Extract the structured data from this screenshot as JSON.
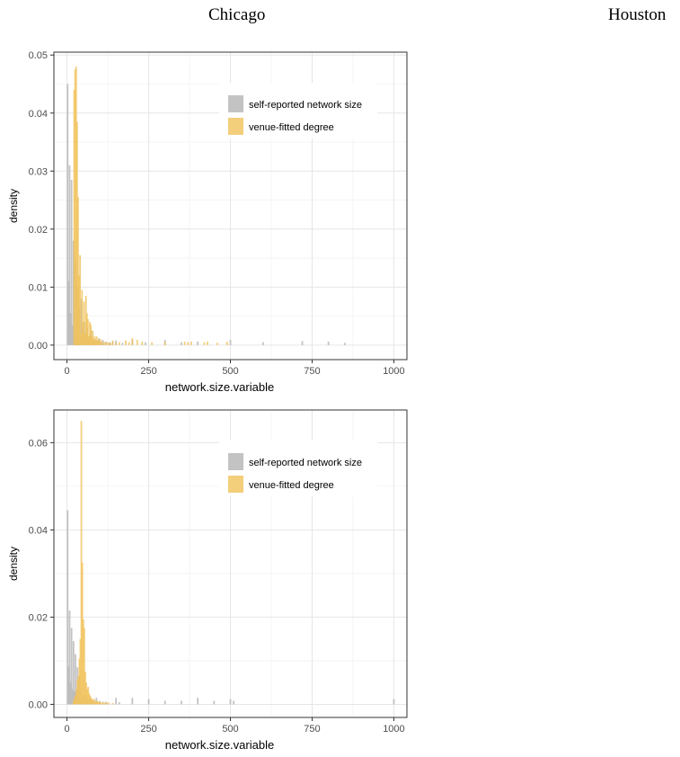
{
  "headers": {
    "left": "Chicago",
    "right": "Houston"
  },
  "colors": {
    "self": "#b9b9b9",
    "venue": "#f0c25a"
  },
  "chart_data": [
    {
      "type": "bar",
      "xlabel": "network.size.variable",
      "ylabel": "density",
      "xlim": [
        -40,
        1040
      ],
      "ylim": [
        -0.0025,
        0.0505
      ],
      "x_ticks": [
        0,
        250,
        500,
        750,
        1000
      ],
      "y_ticks": [
        0.0,
        0.01,
        0.02,
        0.03,
        0.04,
        0.05
      ],
      "y_tick_labels": [
        "0.00",
        "0.01",
        "0.02",
        "0.03",
        "0.04",
        "0.05"
      ],
      "grid": true,
      "legend": "top-right",
      "series": [
        {
          "name": "self-reported network size",
          "color_key": "self",
          "points": [
            [
              2,
              0.045
            ],
            [
              5,
              0.011
            ],
            [
              8,
              0.031
            ],
            [
              11,
              0.0055
            ],
            [
              14,
              0.0285
            ],
            [
              17,
              0.0035
            ],
            [
              20,
              0.018
            ],
            [
              23,
              0.0025
            ],
            [
              26,
              0.0145
            ],
            [
              29,
              0.002
            ],
            [
              32,
              0.01
            ],
            [
              35,
              0.0015
            ],
            [
              38,
              0.0065
            ],
            [
              41,
              0.0012
            ],
            [
              44,
              0.008
            ],
            [
              50,
              0.0025
            ],
            [
              53,
              0.004
            ],
            [
              59,
              0.002
            ],
            [
              62,
              0.003
            ],
            [
              68,
              0.0015
            ],
            [
              74,
              0.0025
            ],
            [
              80,
              0.001
            ],
            [
              86,
              0.001
            ],
            [
              92,
              0.0008
            ],
            [
              98,
              0.0012
            ],
            [
              104,
              0.0006
            ],
            [
              110,
              0.0009
            ],
            [
              120,
              0.0006
            ],
            [
              130,
              0.0005
            ],
            [
              140,
              0.0006
            ],
            [
              150,
              0.0008
            ],
            [
              170,
              0.0004
            ],
            [
              200,
              0.0009
            ],
            [
              240,
              0.0005
            ],
            [
              300,
              0.0009
            ],
            [
              350,
              0.0005
            ],
            [
              400,
              0.0006
            ],
            [
              500,
              0.0009
            ],
            [
              600,
              0.0005
            ],
            [
              720,
              0.0007
            ],
            [
              800,
              0.0006
            ],
            [
              850,
              0.0004
            ]
          ]
        },
        {
          "name": "venue-fitted degree",
          "color_key": "venue",
          "points": [
            [
              22,
              0.044
            ],
            [
              25,
              0.0475
            ],
            [
              28,
              0.048
            ],
            [
              31,
              0.0385
            ],
            [
              34,
              0.0255
            ],
            [
              37,
              0.012
            ],
            [
              40,
              0.0155
            ],
            [
              43,
              0.002
            ],
            [
              46,
              0.0095
            ],
            [
              49,
              0.004
            ],
            [
              52,
              0.0075
            ],
            [
              55,
              0.002
            ],
            [
              58,
              0.0085
            ],
            [
              61,
              0.0055
            ],
            [
              64,
              0.0045
            ],
            [
              67,
              0.0015
            ],
            [
              70,
              0.004
            ],
            [
              73,
              0.0035
            ],
            [
              76,
              0.0015
            ],
            [
              79,
              0.0025
            ],
            [
              82,
              0.001
            ],
            [
              85,
              0.0015
            ],
            [
              88,
              0.001
            ],
            [
              91,
              0.0015
            ],
            [
              94,
              0.0008
            ],
            [
              97,
              0.001
            ],
            [
              100,
              0.0006
            ],
            [
              103,
              0.001
            ],
            [
              109,
              0.0006
            ],
            [
              115,
              0.0005
            ],
            [
              121,
              0.0005
            ],
            [
              127,
              0.0004
            ],
            [
              133,
              0.0004
            ],
            [
              140,
              0.0008
            ],
            [
              150,
              0.0004
            ],
            [
              160,
              0.0005
            ],
            [
              180,
              0.0008
            ],
            [
              190,
              0.0005
            ],
            [
              200,
              0.0012
            ],
            [
              215,
              0.0009
            ],
            [
              230,
              0.0006
            ],
            [
              260,
              0.0005
            ],
            [
              300,
              0.0005
            ],
            [
              360,
              0.0006
            ],
            [
              370,
              0.0005
            ],
            [
              380,
              0.0006
            ],
            [
              420,
              0.0005
            ],
            [
              430,
              0.0006
            ],
            [
              460,
              0.0004
            ],
            [
              490,
              0.0006
            ]
          ]
        }
      ]
    },
    {
      "type": "bar",
      "xlabel": "network.size.variable",
      "ylabel": "density",
      "xlim": [
        -40,
        1040
      ],
      "ylim": [
        -0.003,
        0.0675
      ],
      "x_ticks": [
        0,
        250,
        500,
        750,
        1000
      ],
      "y_ticks": [
        0.0,
        0.02,
        0.04,
        0.06
      ],
      "y_tick_labels": [
        "0.00",
        "0.02",
        "0.04",
        "0.06"
      ],
      "grid": true,
      "legend": "top-right",
      "series": [
        {
          "name": "self-reported network size",
          "color_key": "self",
          "points": [
            [
              2,
              0.0445
            ],
            [
              5,
              0.0085
            ],
            [
              8,
              0.0215
            ],
            [
              11,
              0.005
            ],
            [
              14,
              0.0175
            ],
            [
              17,
              0.0035
            ],
            [
              20,
              0.0145
            ],
            [
              23,
              0.003
            ],
            [
              26,
              0.0115
            ],
            [
              29,
              0.0025
            ],
            [
              32,
              0.0085
            ],
            [
              35,
              0.0015
            ],
            [
              38,
              0.0065
            ],
            [
              41,
              0.0012
            ],
            [
              44,
              0.004
            ],
            [
              50,
              0.002
            ],
            [
              56,
              0.0025
            ],
            [
              62,
              0.0015
            ],
            [
              68,
              0.0015
            ],
            [
              74,
              0.0012
            ],
            [
              80,
              0.001
            ],
            [
              90,
              0.0015
            ],
            [
              100,
              0.0008
            ],
            [
              110,
              0.0006
            ],
            [
              120,
              0.0006
            ],
            [
              150,
              0.0015
            ],
            [
              160,
              0.0005
            ],
            [
              200,
              0.0015
            ],
            [
              250,
              0.0012
            ],
            [
              300,
              0.0008
            ],
            [
              350,
              0.0008
            ],
            [
              400,
              0.0015
            ],
            [
              450,
              0.0008
            ],
            [
              500,
              0.0012
            ],
            [
              510,
              0.0008
            ],
            [
              1000,
              0.0012
            ]
          ]
        },
        {
          "name": "venue-fitted degree",
          "color_key": "venue",
          "points": [
            [
              20,
              0.0008
            ],
            [
              23,
              0.0015
            ],
            [
              26,
              0.002
            ],
            [
              29,
              0.0035
            ],
            [
              32,
              0.0055
            ],
            [
              35,
              0.0065
            ],
            [
              38,
              0.0105
            ],
            [
              41,
              0.015
            ],
            [
              44,
              0.065
            ],
            [
              47,
              0.0325
            ],
            [
              50,
              0.0195
            ],
            [
              53,
              0.0175
            ],
            [
              56,
              0.0075
            ],
            [
              59,
              0.005
            ],
            [
              62,
              0.0035
            ],
            [
              65,
              0.004
            ],
            [
              68,
              0.0025
            ],
            [
              71,
              0.002
            ],
            [
              74,
              0.0015
            ],
            [
              77,
              0.0012
            ],
            [
              80,
              0.001
            ],
            [
              83,
              0.0012
            ],
            [
              86,
              0.0008
            ],
            [
              89,
              0.0006
            ],
            [
              92,
              0.0008
            ],
            [
              95,
              0.0005
            ],
            [
              98,
              0.0006
            ],
            [
              101,
              0.0005
            ],
            [
              104,
              0.0004
            ],
            [
              110,
              0.0005
            ],
            [
              116,
              0.0004
            ],
            [
              122,
              0.0004
            ],
            [
              128,
              0.0004
            ],
            [
              140,
              0.0003
            ]
          ]
        }
      ]
    }
  ]
}
